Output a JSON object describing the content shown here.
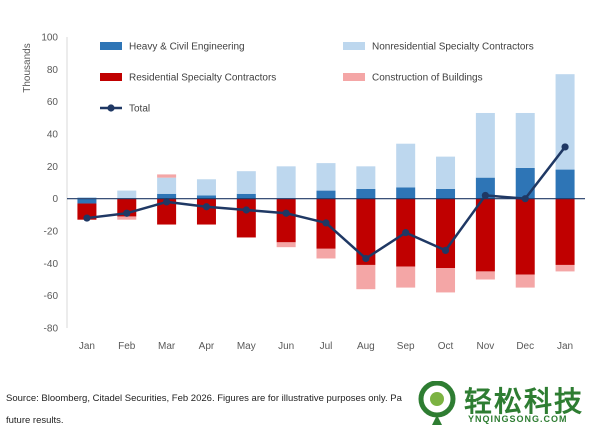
{
  "chart_data": {
    "type": "bar",
    "stacked": true,
    "title": "",
    "xlabel": "",
    "ylabel": "Thousands",
    "ylim": [
      -80,
      100
    ],
    "yticks": [
      -80,
      -60,
      -40,
      -20,
      0,
      20,
      40,
      60,
      80,
      100
    ],
    "grid": false,
    "legend_position": "top",
    "categories": [
      "Jan",
      "Feb",
      "Mar",
      "Apr",
      "May",
      "Jun",
      "Jul",
      "Aug",
      "Sep",
      "Oct",
      "Nov",
      "Dec",
      "Jan"
    ],
    "series": [
      {
        "name": "Heavy & Civil Engineering",
        "kind": "bar",
        "color": "#2e75b6",
        "values": [
          -3,
          0,
          3,
          2,
          3,
          0,
          5,
          6,
          7,
          6,
          13,
          19,
          18
        ]
      },
      {
        "name": "Nonresidential Specialty Contractors",
        "kind": "bar",
        "color": "#bdd7ee",
        "values": [
          1,
          5,
          10,
          10,
          14,
          20,
          17,
          14,
          27,
          20,
          40,
          34,
          59
        ]
      },
      {
        "name": "Residential Specialty Contractors",
        "kind": "bar",
        "color": "#c00000",
        "values": [
          -10,
          -11,
          -16,
          -16,
          -24,
          -27,
          -31,
          -41,
          -42,
          -43,
          -45,
          -47,
          -41
        ]
      },
      {
        "name": "Construction of Buildings",
        "kind": "bar",
        "color": "#f4a6a6",
        "values": [
          0,
          -2,
          2,
          0,
          0,
          -3,
          -6,
          -15,
          -13,
          -15,
          -5,
          -8,
          -4
        ]
      },
      {
        "name": "Total",
        "kind": "line",
        "color": "#1f3864",
        "values": [
          -12,
          -9,
          -2,
          -5,
          -7,
          -9,
          -15,
          -37,
          -21,
          -32,
          2,
          0,
          32
        ]
      }
    ]
  },
  "footer": {
    "source_text": "Source: Bloomberg, Citadel Securities, Feb 2026. Figures are for illustrative purposes only. Pa",
    "source_text_2": "future results."
  },
  "watermark": {
    "title": "轻松科技",
    "url": "YNQINGSONG.COM"
  }
}
